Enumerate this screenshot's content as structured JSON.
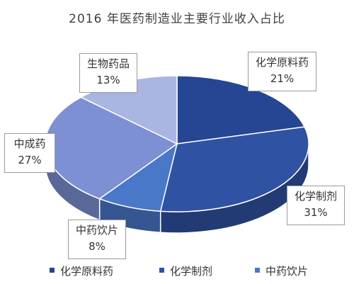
{
  "chart_data": {
    "type": "pie",
    "title": "2016 年医药制造业主要行业收入占比",
    "slices": [
      {
        "label": "化学原料药",
        "value": 21,
        "display": "21%",
        "color": "#264693"
      },
      {
        "label": "化学制剂",
        "value": 31,
        "display": "31%",
        "color": "#2f52a3"
      },
      {
        "label": "中药饮片",
        "value": 8,
        "display": "8%",
        "color": "#4a78c8"
      },
      {
        "label": "中成药",
        "value": 27,
        "display": "27%",
        "color": "#7d90d4"
      },
      {
        "label": "生物药品",
        "value": 13,
        "display": "13%",
        "color": "#a9b6e2"
      }
    ],
    "legend": {
      "placement": "bottom",
      "entries": [
        "化学原料药",
        "化学制剂",
        "中药饮片"
      ]
    }
  }
}
